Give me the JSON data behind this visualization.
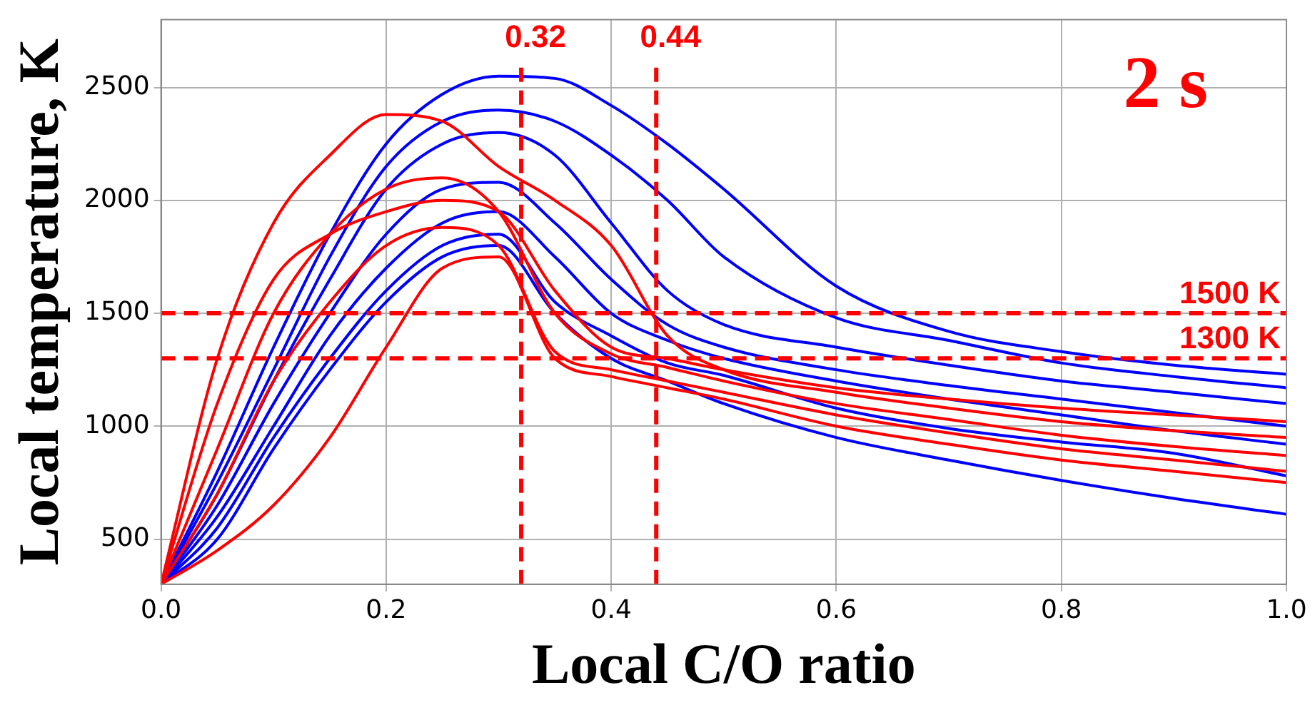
{
  "chart_data": {
    "type": "line",
    "xlabel": "Local C/O ratio",
    "ylabel": "Local temperature, K",
    "annotations": [
      "2 s"
    ],
    "x": [
      0,
      0.05,
      0.1,
      0.15,
      0.2,
      0.25,
      0.3,
      0.35,
      0.4,
      0.45,
      0.5,
      0.6,
      0.7,
      0.8,
      0.9,
      1.0
    ],
    "series": [
      {
        "color": "#ff0000",
        "values": [
          300,
          1300,
          1900,
          2200,
          2380,
          2350,
          2150,
          2000,
          1800,
          1400,
          1250,
          1150,
          1080,
          1020,
          980,
          950
        ]
      },
      {
        "color": "#ff0000",
        "values": [
          300,
          900,
          1500,
          1850,
          2050,
          2100,
          1950,
          1500,
          1320,
          1260,
          1200,
          1100,
          1030,
          960,
          910,
          870
        ]
      },
      {
        "color": "#ff0000",
        "values": [
          300,
          700,
          1200,
          1550,
          1800,
          1880,
          1800,
          1330,
          1250,
          1200,
          1150,
          1050,
          970,
          900,
          850,
          800
        ]
      },
      {
        "color": "#ff0000",
        "values": [
          300,
          450,
          650,
          950,
          1350,
          1700,
          1750,
          1300,
          1220,
          1170,
          1120,
          1000,
          920,
          850,
          800,
          750
        ]
      },
      {
        "color": "#ff0000",
        "values": [
          300,
          1100,
          1650,
          1850,
          1950,
          2000,
          1950,
          1600,
          1350,
          1300,
          1250,
          1170,
          1120,
          1080,
          1050,
          1020
        ]
      },
      {
        "color": "#0000ff",
        "values": [
          300,
          800,
          1350,
          1850,
          2250,
          2470,
          2550,
          2540,
          2420,
          2250,
          2050,
          1620,
          1420,
          1330,
          1270,
          1230
        ]
      },
      {
        "color": "#0000ff",
        "values": [
          300,
          750,
          1250,
          1750,
          2150,
          2350,
          2400,
          2350,
          2200,
          2000,
          1750,
          1480,
          1380,
          1280,
          1220,
          1170
        ]
      },
      {
        "color": "#0000ff",
        "values": [
          300,
          700,
          1200,
          1650,
          2050,
          2250,
          2300,
          2200,
          1900,
          1600,
          1450,
          1350,
          1270,
          1200,
          1150,
          1100
        ]
      },
      {
        "color": "#0000ff",
        "values": [
          300,
          650,
          1100,
          1500,
          1850,
          2050,
          2080,
          1900,
          1650,
          1450,
          1350,
          1250,
          1180,
          1120,
          1060,
          1000
        ]
      },
      {
        "color": "#0000ff",
        "values": [
          300,
          600,
          1000,
          1400,
          1700,
          1900,
          1950,
          1750,
          1500,
          1380,
          1300,
          1200,
          1120,
          1050,
          980,
          920
        ]
      },
      {
        "color": "#0000ff",
        "values": [
          300,
          550,
          950,
          1300,
          1600,
          1800,
          1850,
          1550,
          1400,
          1280,
          1225,
          1080,
          990,
          930,
          880,
          780
        ]
      },
      {
        "color": "#0000ff",
        "values": [
          300,
          500,
          900,
          1250,
          1550,
          1750,
          1800,
          1500,
          1300,
          1200,
          1100,
          950,
          850,
          760,
          680,
          610
        ]
      }
    ],
    "xlim": [
      0,
      1
    ],
    "xticks": [
      {
        "value": 0,
        "label": "0.0"
      },
      {
        "value": 0.2,
        "label": "0.2"
      },
      {
        "value": 0.4,
        "label": "0.4"
      },
      {
        "value": 0.6,
        "label": "0.6"
      },
      {
        "value": 0.8,
        "label": "0.8"
      },
      {
        "value": 1,
        "label": "1.0"
      }
    ],
    "ylim": [
      300,
      2800
    ],
    "yticks": [
      500,
      1000,
      1500,
      2000,
      2500
    ],
    "ref_lines": [
      {
        "axis": "x",
        "value": 0.32,
        "label": "0.32",
        "color": "#ff0000",
        "line_style": "dashed"
      },
      {
        "axis": "x",
        "value": 0.44,
        "label": "0.44",
        "color": "#ff0000",
        "line_style": "dashed"
      },
      {
        "axis": "y",
        "value": 1500,
        "label": "1500 K",
        "color": "#ff0000",
        "line_style": "dashed"
      },
      {
        "axis": "y",
        "value": 1300,
        "label": "1300 K",
        "color": "#ff0000",
        "line_style": "dashed"
      }
    ],
    "grid": true,
    "legend": false,
    "marker": "none",
    "line_style": "solid"
  }
}
